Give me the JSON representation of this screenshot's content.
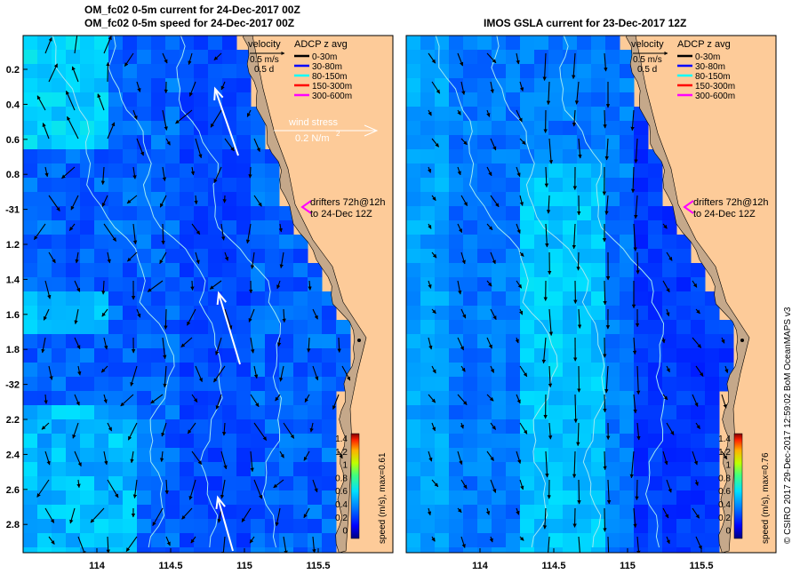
{
  "left_panel": {
    "title_line1": "OM_fc02 0-5m current for 24-Dec-2017 00Z",
    "title_line2": "OM_fc02 0-5m speed for 24-Dec-2017 00Z",
    "yticks": [
      "0.2",
      "0.4",
      "0.6",
      "0.8",
      "-31",
      "1.2",
      "1.4",
      "1.6",
      "1.8",
      "-32",
      "2.2",
      "2.4",
      "2.6",
      "2.8"
    ],
    "xticks": [
      "114",
      "114.5",
      "115",
      "115.5"
    ],
    "velocity_title": "velocity",
    "velocity_scale": "0.5 m/s",
    "velocity_days": "0.5 d",
    "wind_title": "wind stress",
    "wind_scale_value": "0.2 N/m",
    "wind_scale_exp": "2",
    "drifters_line1": "drifters 72h@12h",
    "drifters_line2": "to 24-Dec 12Z",
    "colorbar_ticks": [
      "1.4",
      "1.2",
      "1",
      "0.8",
      "0.6",
      "0.4",
      "0.2",
      "0"
    ],
    "colorbar_label": "speed (m/s), max=0.61"
  },
  "right_panel": {
    "title": "IMOS GSLA current for 23-Dec-2017 12Z",
    "xticks": [
      "114",
      "114.5",
      "115",
      "115.5"
    ],
    "velocity_title": "velocity",
    "velocity_scale": "0.5 m/s",
    "velocity_days": "0.5 d",
    "drifters_line1": "drifters 72h@12h",
    "drifters_line2": "to 24-Dec 12Z",
    "colorbar_ticks": [
      "1.4",
      "1.2",
      "1",
      "0.8",
      "0.6",
      "0.4",
      "0.2",
      "0"
    ],
    "colorbar_label": "speed (m/s), max=0.76"
  },
  "adcp_legend": {
    "title": "ADCP z avg",
    "items": [
      {
        "label": "0-30m",
        "color": "#000000"
      },
      {
        "label": "30-80m",
        "color": "#0000ff"
      },
      {
        "label": "80-150m",
        "color": "#00ffff"
      },
      {
        "label": "150-300m",
        "color": "#ff0000"
      },
      {
        "label": "300-600m",
        "color": "#ff00ff"
      }
    ]
  },
  "drifter_color": "#ff00ff",
  "credit": "© CSIRO 2017   29-Dec-2017 12:59:02 BoM OceanMAPS v3",
  "colors": {
    "land": "#fdcb99",
    "coast_shelf": "#c5a88a",
    "contour": "#9fe8f2"
  }
}
